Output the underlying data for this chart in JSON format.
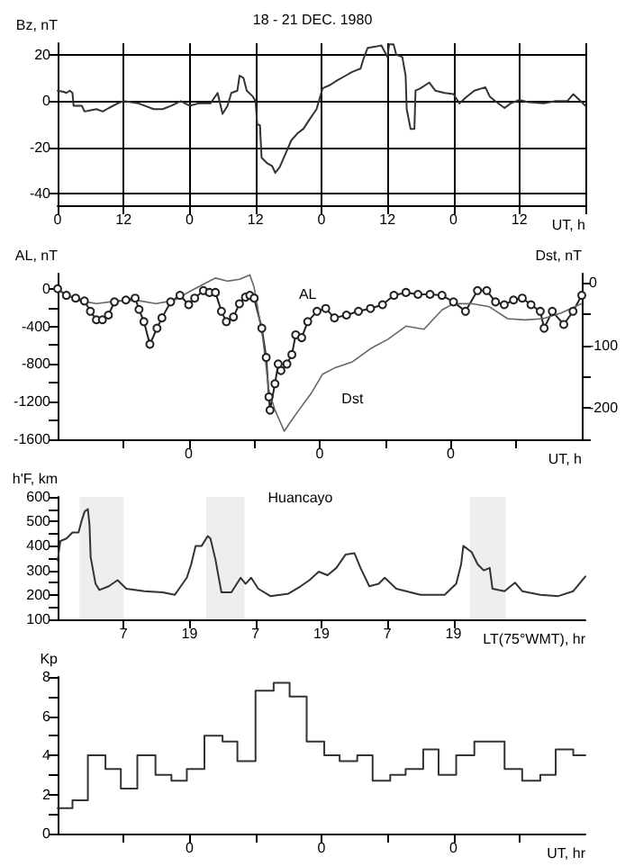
{
  "chart_data": [
    {
      "type": "line",
      "title": "18 - 21 DEC. 1980",
      "ylabel": "Bz, nT",
      "xlabel": "UT, h",
      "grid": true,
      "xlim": [
        "1980-12-18T00:00",
        "1980-12-22T00:00"
      ],
      "xticks": [
        {
          "value": "1980-12-18T00:00",
          "label": "0"
        },
        {
          "value": "1980-12-18T12:00",
          "label": "12"
        },
        {
          "value": "1980-12-19T00:00",
          "label": "0"
        },
        {
          "value": "1980-12-19T12:00",
          "label": "12"
        },
        {
          "value": "1980-12-20T00:00",
          "label": "0"
        },
        {
          "value": "1980-12-20T12:00",
          "label": "12"
        },
        {
          "value": "1980-12-21T00:00",
          "label": "0"
        },
        {
          "value": "1980-12-21T12:00",
          "label": "12"
        },
        {
          "value": "1980-12-22T00:00",
          "label": null
        }
      ],
      "ylim": [
        -45,
        25
      ],
      "yticks": [
        -40,
        -20,
        0,
        20
      ],
      "series": [
        {
          "color": "#333333",
          "x": [
            "1980-12-18T00:00",
            "1980-12-18T01:06",
            "1980-12-18T01:36",
            "1980-12-18T02:12",
            "1980-12-18T02:42",
            "1980-12-18T02:54",
            "1980-12-18T04:24",
            "1980-12-18T04:54",
            "1980-12-18T06:00",
            "1980-12-18T07:06",
            "1980-12-18T08:12",
            "1980-12-18T09:18",
            "1980-12-18T10:54",
            "1980-12-18T12:00",
            "1980-12-18T14:42",
            "1980-12-18T15:48",
            "1980-12-18T17:30",
            "1980-12-18T19:06",
            "1980-12-18T20:42",
            "1980-12-18T22:24",
            "1980-12-19T00:00",
            "1980-12-19T01:36",
            "1980-12-19T03:48",
            "1980-12-19T05:06",
            "1980-12-19T06:00",
            "1980-12-19T06:54",
            "1980-12-19T07:36",
            "1980-12-19T08:42",
            "1980-12-19T09:06",
            "1980-12-19T09:48",
            "1980-12-19T10:24",
            "1980-12-19T11:30",
            "1980-12-19T12:00",
            "1980-12-19T12:18",
            "1980-12-19T12:48",
            "1980-12-19T13:06",
            "1980-12-19T14:12",
            "1980-12-19T15:00",
            "1980-12-19T15:36",
            "1980-12-19T16:24",
            "1980-12-19T17:30",
            "1980-12-19T18:30",
            "1980-12-19T19:36",
            "1980-12-19T20:42",
            "1980-12-19T21:48",
            "1980-12-19T23:06",
            "1980-12-20T00:12",
            "1980-12-20T01:36",
            "1980-12-20T02:54",
            "1980-12-20T04:24",
            "1980-12-20T05:30",
            "1980-12-20T06:30",
            "1980-12-20T07:06",
            "1980-12-20T07:36",
            "1980-12-20T08:24",
            "1980-12-20T09:48",
            "1980-12-20T10:54",
            "1980-12-20T12:00",
            "1980-12-20T12:18",
            "1980-12-20T13:06",
            "1980-12-20T13:36",
            "1980-12-20T14:42",
            "1980-12-20T15:18",
            "1980-12-20T15:30",
            "1980-12-20T16:12",
            "1980-12-20T16:54",
            "1980-12-20T17:06",
            "1980-12-20T18:00",
            "1980-12-20T19:36",
            "1980-12-20T20:42",
            "1980-12-20T22:24",
            "1980-12-21T00:00",
            "1980-12-21T01:06",
            "1980-12-21T02:12",
            "1980-12-21T03:48",
            "1980-12-21T05:48",
            "1980-12-21T06:36",
            "1980-12-21T07:36",
            "1980-12-21T09:18",
            "1980-12-21T10:24",
            "1980-12-21T12:00",
            "1980-12-21T13:36",
            "1980-12-21T16:24",
            "1980-12-21T18:36",
            "1980-12-21T20:42",
            "1980-12-21T21:48",
            "1980-12-21T22:54",
            "1980-12-22T00:00"
          ],
          "values": [
            4.5,
            4,
            3.5,
            4.5,
            3.5,
            -2,
            -2,
            -4.5,
            -4,
            -3.5,
            -4.5,
            -3,
            -1,
            0,
            -1,
            -2,
            -3.5,
            -3.5,
            -2,
            0,
            -2,
            -1,
            -1,
            3.5,
            -5.5,
            -2,
            3.5,
            4.5,
            11,
            10,
            4.5,
            2,
            0,
            -10,
            -10.5,
            -24.5,
            -27,
            -28,
            -31,
            -28.5,
            -22.5,
            -17,
            -14,
            -12,
            -8,
            -3.5,
            5.5,
            7,
            9,
            11,
            12.5,
            13.5,
            14,
            18,
            23,
            23.5,
            24,
            19,
            24.5,
            24.5,
            20,
            19,
            11,
            -3.5,
            -12,
            -12,
            4.5,
            5.5,
            8,
            4.5,
            3.5,
            3,
            -1,
            1.5,
            4.5,
            6,
            2,
            0,
            -3,
            -1,
            0.5,
            -0.5,
            -1,
            0,
            0,
            3,
            0.5,
            -2
          ]
        }
      ]
    },
    {
      "type": "line",
      "ylabel": "AL, nT",
      "y2label": "Dst, nT",
      "xlabel": "UT, h",
      "xlim": [
        "1980-12-18T00:00",
        "1980-12-22T00:00"
      ],
      "xticks": [
        {
          "value": "1980-12-18T12:00",
          "label": null
        },
        {
          "value": "1980-12-19T00:00",
          "label": "0"
        },
        {
          "value": "1980-12-19T12:00",
          "label": null
        },
        {
          "value": "1980-12-20T00:00",
          "label": "0"
        },
        {
          "value": "1980-12-20T12:00",
          "label": null
        },
        {
          "value": "1980-12-21T00:00",
          "label": "0"
        },
        {
          "value": "1980-12-21T12:00",
          "label": null
        }
      ],
      "ylim": [
        -1600,
        160
      ],
      "yticks": [
        -1600,
        {
          "value": -1400,
          "label": null
        },
        -1200,
        {
          "value": -1000,
          "label": null
        },
        -800,
        {
          "value": -600,
          "label": null
        },
        -400,
        {
          "value": -200,
          "label": null
        },
        0
      ],
      "y2lim": [
        -250,
        15
      ],
      "y2ticks": [
        {
          "value": -250,
          "label": null
        },
        -200,
        {
          "value": -150,
          "label": null
        },
        -100,
        {
          "value": -50,
          "label": null
        },
        0
      ],
      "series": [
        {
          "name": "AL",
          "color": "#222222",
          "marker": "circle",
          "x": [
            "1980-12-18T00:00",
            "1980-12-18T01:36",
            "1980-12-18T03:18",
            "1980-12-18T04:54",
            "1980-12-18T06:00",
            "1980-12-18T07:06",
            "1980-12-18T08:12",
            "1980-12-18T09:18",
            "1980-12-18T10:24",
            "1980-12-18T12:30",
            "1980-12-18T14:12",
            "1980-12-18T14:54",
            "1980-12-18T15:48",
            "1980-12-18T16:54",
            "1980-12-18T18:12",
            "1980-12-18T19:06",
            "1980-12-18T20:42",
            "1980-12-18T22:24",
            "1980-12-19T00:00",
            "1980-12-19T01:06",
            "1980-12-19T02:42",
            "1980-12-19T03:48",
            "1980-12-19T04:54",
            "1980-12-19T06:00",
            "1980-12-19T06:54",
            "1980-12-19T08:12",
            "1980-12-19T09:18",
            "1980-12-19T10:24",
            "1980-12-19T11:12",
            "1980-12-19T12:00",
            "1980-12-19T13:24",
            "1980-12-19T14:12",
            "1980-12-19T14:42",
            "1980-12-19T14:54",
            "1980-12-19T15:48",
            "1980-12-19T16:24",
            "1980-12-19T16:54",
            "1980-12-19T18:00",
            "1980-12-19T18:54",
            "1980-12-19T19:36",
            "1980-12-19T20:42",
            "1980-12-19T21:48",
            "1980-12-19T23:30",
            "1980-12-20T01:06",
            "1980-12-20T02:42",
            "1980-12-20T04:54",
            "1980-12-20T07:06",
            "1980-12-20T09:18",
            "1980-12-20T11:30",
            "1980-12-20T13:36",
            "1980-12-20T15:48",
            "1980-12-20T18:00",
            "1980-12-20T20:12",
            "1980-12-20T22:24",
            "1980-12-21T00:30",
            "1980-12-21T02:42",
            "1980-12-21T04:54",
            "1980-12-21T06:36",
            "1980-12-21T08:12",
            "1980-12-21T09:48",
            "1980-12-21T11:30",
            "1980-12-21T13:06",
            "1980-12-21T14:42",
            "1980-12-21T16:24",
            "1980-12-21T17:06",
            "1980-12-21T18:36",
            "1980-12-21T20:42",
            "1980-12-21T22:24",
            "1980-12-22T00:00"
          ],
          "values": [
            0,
            -70,
            -100,
            -130,
            -240,
            -330,
            -330,
            -280,
            -140,
            -120,
            -100,
            -220,
            -350,
            -590,
            -420,
            -310,
            -140,
            -70,
            -170,
            -100,
            -20,
            -40,
            -40,
            -240,
            -350,
            -300,
            -160,
            -90,
            -70,
            -100,
            -420,
            -730,
            -1150,
            -1290,
            -1010,
            -800,
            -870,
            -800,
            -700,
            -490,
            -520,
            -350,
            -240,
            -210,
            -310,
            -280,
            -240,
            -210,
            -170,
            -70,
            -40,
            -60,
            -60,
            -70,
            -140,
            -240,
            -20,
            -20,
            -140,
            -170,
            -120,
            -100,
            -170,
            -240,
            -420,
            -240,
            -380,
            -240,
            -70
          ]
        },
        {
          "name": "Dst",
          "color": "#666666",
          "axis": "y2",
          "x": [
            "1980-12-18T00:00",
            "1980-12-18T03:48",
            "1980-12-18T07:06",
            "1980-12-18T11:30",
            "1980-12-18T14:42",
            "1980-12-18T18:00",
            "1980-12-18T21:18",
            "1980-12-19T00:30",
            "1980-12-19T03:48",
            "1980-12-19T04:54",
            "1980-12-19T07:06",
            "1980-12-19T09:18",
            "1980-12-19T11:12",
            "1980-12-19T12:00",
            "1980-12-19T13:36",
            "1980-12-19T14:42",
            "1980-12-19T15:48",
            "1980-12-19T17:30",
            "1980-12-19T18:30",
            "1980-12-19T20:12",
            "1980-12-19T22:24",
            "1980-12-20T00:30",
            "1980-12-20T02:42",
            "1980-12-20T06:00",
            "1980-12-20T09:18",
            "1980-12-20T12:30",
            "1980-12-20T15:48",
            "1980-12-20T19:06",
            "1980-12-20T22:24",
            "1980-12-21T00:30",
            "1980-12-21T03:48",
            "1980-12-21T07:06",
            "1980-12-21T10:24",
            "1980-12-21T13:36",
            "1980-12-21T16:54",
            "1980-12-21T20:12",
            "1980-12-22T00:00"
          ],
          "values": [
            -12,
            -28,
            -33,
            -28,
            -28,
            -33,
            -28,
            -12,
            3,
            8,
            3,
            6,
            13,
            -7,
            -90,
            -172,
            -203,
            -237,
            -224,
            -203,
            -177,
            -146,
            -136,
            -126,
            -105,
            -90,
            -69,
            -74,
            -43,
            -33,
            -33,
            -38,
            -57,
            -59,
            -57,
            -48,
            -33
          ]
        }
      ]
    },
    {
      "type": "line",
      "ylabel": "h'F, km",
      "xlabel": "LT(75°WMT), hr",
      "xlim": [
        "1980-12-17T19:00",
        "1980-12-21T19:00"
      ],
      "xticks": [
        {
          "value": "1980-12-18T07:00",
          "label": "7"
        },
        {
          "value": "1980-12-18T19:00",
          "label": "19"
        },
        {
          "value": "1980-12-19T07:00",
          "label": "7"
        },
        {
          "value": "1980-12-19T19:00",
          "label": "19"
        },
        {
          "value": "1980-12-20T07:00",
          "label": "7"
        },
        {
          "value": "1980-12-20T19:00",
          "label": "19"
        }
      ],
      "ylim": [
        100,
        600
      ],
      "yticks": [
        100,
        {
          "value": 150,
          "label": null
        },
        200,
        {
          "value": 250,
          "label": null
        },
        300,
        {
          "value": 350,
          "label": null
        },
        400,
        {
          "value": 450,
          "label": null
        },
        500,
        {
          "value": 550,
          "label": null
        },
        600
      ],
      "bands": [
        {
          "axis": "x",
          "from": "1980-12-17T23:00",
          "to": "1980-12-18T07:00",
          "color": "#eeeeee"
        },
        {
          "axis": "x",
          "from": "1980-12-18T22:00",
          "to": "1980-12-19T05:00",
          "color": "#eeeeee"
        },
        {
          "axis": "x",
          "from": "1980-12-20T22:00",
          "to": "1980-12-21T04:30",
          "color": "#eeeeee"
        }
      ],
      "series": [
        {
          "name": "Huancayo",
          "color": "#333333",
          "x": [
            "1980-12-17T19:00",
            "1980-12-17T19:30",
            "1980-12-17T20:36",
            "1980-12-17T21:42",
            "1980-12-17T22:48",
            "1980-12-17T23:24",
            "1980-12-17T23:54",
            "1980-12-18T00:30",
            "1980-12-18T00:48",
            "1980-12-18T01:00",
            "1980-12-18T01:54",
            "1980-12-18T02:36",
            "1980-12-18T04:18",
            "1980-12-18T05:54",
            "1980-12-18T07:30",
            "1980-12-18T10:48",
            "1980-12-18T14:06",
            "1980-12-18T16:18",
            "1980-12-18T17:24",
            "1980-12-18T18:30",
            "1980-12-18T19:18",
            "1980-12-18T20:06",
            "1980-12-18T21:12",
            "1980-12-18T22:18",
            "1980-12-18T22:48",
            "1980-12-18T23:42",
            "1980-12-19T00:48",
            "1980-12-19T02:36",
            "1980-12-19T04:18",
            "1980-12-19T05:12",
            "1980-12-19T06:12",
            "1980-12-19T07:30",
            "1980-12-19T09:42",
            "1980-12-19T13:00",
            "1980-12-19T15:12",
            "1980-12-19T16:48",
            "1980-12-19T18:30",
            "1980-12-19T20:06",
            "1980-12-19T21:42",
            "1980-12-19T23:24",
            "1980-12-20T01:00",
            "1980-12-20T02:06",
            "1980-12-20T03:42",
            "1980-12-20T05:24",
            "1980-12-20T06:30",
            "1980-12-20T08:36",
            "1980-12-20T13:00",
            "1980-12-20T17:24",
            "1980-12-20T19:30",
            "1980-12-20T20:24",
            "1980-12-20T20:48",
            "1980-12-20T22:18",
            "1980-12-20T23:24",
            "1980-12-21T00:30",
            "1980-12-21T01:36",
            "1980-12-21T02:06",
            "1980-12-21T04:18",
            "1980-12-21T06:12",
            "1980-12-21T07:30",
            "1980-12-21T10:48",
            "1980-12-21T14:06",
            "1980-12-21T16:48",
            "1980-12-21T19:00"
          ],
          "values": [
            340,
            420,
            430,
            455,
            455,
            505,
            540,
            550,
            485,
            355,
            245,
            220,
            235,
            260,
            225,
            215,
            210,
            200,
            235,
            270,
            325,
            400,
            400,
            440,
            430,
            345,
            210,
            210,
            270,
            245,
            270,
            225,
            195,
            205,
            235,
            260,
            295,
            280,
            310,
            365,
            370,
            310,
            235,
            245,
            270,
            225,
            200,
            200,
            245,
            325,
            400,
            375,
            325,
            300,
            310,
            225,
            215,
            250,
            215,
            200,
            195,
            215,
            275
          ]
        }
      ]
    },
    {
      "type": "step",
      "ylabel": "Kp",
      "xlabel": "UT, hr",
      "xlim": [
        "1980-12-18T00:00",
        "1980-12-22T00:00"
      ],
      "xticks": [
        {
          "value": "1980-12-18T12:00",
          "label": null
        },
        {
          "value": "1980-12-19T00:00",
          "label": "0"
        },
        {
          "value": "1980-12-19T12:00",
          "label": null
        },
        {
          "value": "1980-12-20T00:00",
          "label": "0"
        },
        {
          "value": "1980-12-20T12:00",
          "label": null
        },
        {
          "value": "1980-12-21T00:00",
          "label": "0"
        },
        {
          "value": "1980-12-21T12:00",
          "label": null
        }
      ],
      "ylim": [
        0,
        8
      ],
      "yticks": [
        0,
        {
          "value": 1,
          "label": null
        },
        2,
        {
          "value": 3,
          "label": null
        },
        4,
        {
          "value": 5,
          "label": null
        },
        6,
        {
          "value": 7,
          "label": null
        },
        8
      ],
      "series": [
        {
          "color": "#333333",
          "x": [
            "1980-12-18T00:00",
            "1980-12-18T02:42",
            "1980-12-18T05:30",
            "1980-12-18T08:42",
            "1980-12-18T11:30",
            "1980-12-18T14:30",
            "1980-12-18T17:48",
            "1980-12-18T20:42",
            "1980-12-18T23:30",
            "1980-12-19T02:42",
            "1980-12-19T06:00",
            "1980-12-19T08:42",
            "1980-12-19T12:00",
            "1980-12-19T15:18",
            "1980-12-19T18:12",
            "1980-12-19T21:18",
            "1980-12-20T00:30",
            "1980-12-20T03:18",
            "1980-12-20T06:30",
            "1980-12-20T09:18",
            "1980-12-20T12:30",
            "1980-12-20T15:18",
            "1980-12-20T18:30",
            "1980-12-20T21:18",
            "1980-12-21T00:30",
            "1980-12-21T03:48",
            "1980-12-21T09:18",
            "1980-12-21T12:30",
            "1980-12-21T15:48",
            "1980-12-21T18:36",
            "1980-12-21T21:48",
            "1980-12-22T00:00"
          ],
          "values": [
            1.3,
            1.7,
            4,
            3.3,
            2.3,
            4,
            3,
            2.7,
            3.3,
            5,
            4.7,
            3.7,
            7.3,
            7.7,
            7,
            4.7,
            4,
            3.7,
            4,
            2.7,
            3,
            3.3,
            4.3,
            3,
            4,
            4.7,
            3.3,
            2.7,
            3,
            4.3,
            4,
            4
          ]
        }
      ]
    }
  ]
}
